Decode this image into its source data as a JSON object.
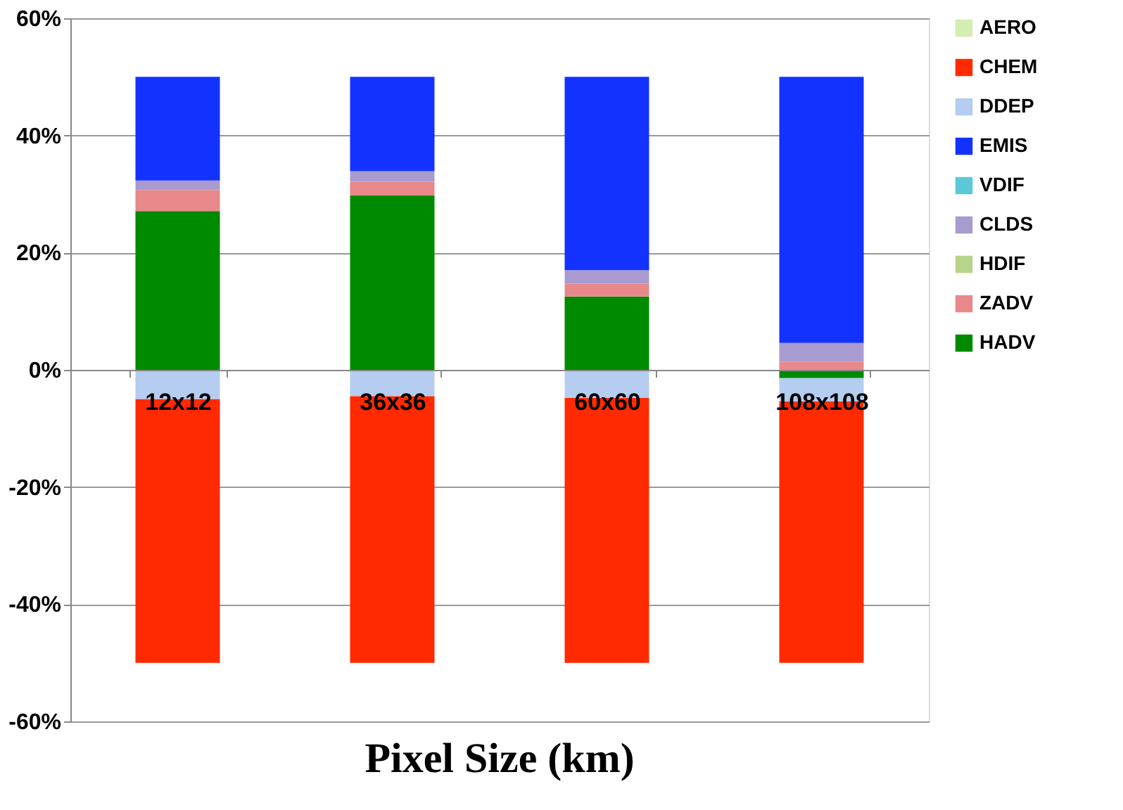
{
  "chart_data": {
    "type": "bar",
    "stacked": true,
    "xlabel": "Pixel Size (km)",
    "categories": [
      "12x12",
      "36x36",
      "60x60",
      "108x108"
    ],
    "series": [
      {
        "name": "HADV",
        "color": "#008a00",
        "values": [
          27.1,
          29.8,
          12.5,
          -1.4
        ]
      },
      {
        "name": "ZADV",
        "color": "#e8888a",
        "values": [
          3.6,
          2.3,
          2.2,
          1.4
        ]
      },
      {
        "name": "HDIF",
        "color": "#b8d38a",
        "values": [
          0,
          0,
          0,
          0
        ]
      },
      {
        "name": "CLDS",
        "color": "#a99bd0",
        "values": [
          1.6,
          1.8,
          2.3,
          3.2
        ]
      },
      {
        "name": "VDIF",
        "color": "#5bc8d8",
        "values": [
          0,
          0,
          0,
          0
        ]
      },
      {
        "name": "EMIS",
        "color": "#1432ff",
        "values": [
          17.7,
          16.1,
          33.0,
          45.4
        ]
      },
      {
        "name": "DDEP",
        "color": "#b4cdf0",
        "values": [
          -5.0,
          -4.5,
          -4.8,
          -4.0
        ]
      },
      {
        "name": "CHEM",
        "color": "#ff2a00",
        "values": [
          -45.0,
          -45.5,
          -45.2,
          -44.6
        ]
      },
      {
        "name": "AERO",
        "color": "#d4edb0",
        "values": [
          0,
          0,
          0,
          0
        ]
      }
    ],
    "ylim": [
      -60,
      60
    ],
    "yticks": [
      {
        "value": -60,
        "label": "-60%"
      },
      {
        "value": -40,
        "label": "-40%"
      },
      {
        "value": -20,
        "label": "-20%"
      },
      {
        "value": 0,
        "label": "0%"
      },
      {
        "value": 20,
        "label": "20%"
      },
      {
        "value": 40,
        "label": "40%"
      },
      {
        "value": 60,
        "label": "60%"
      }
    ],
    "grid": "y",
    "legend": "right"
  }
}
